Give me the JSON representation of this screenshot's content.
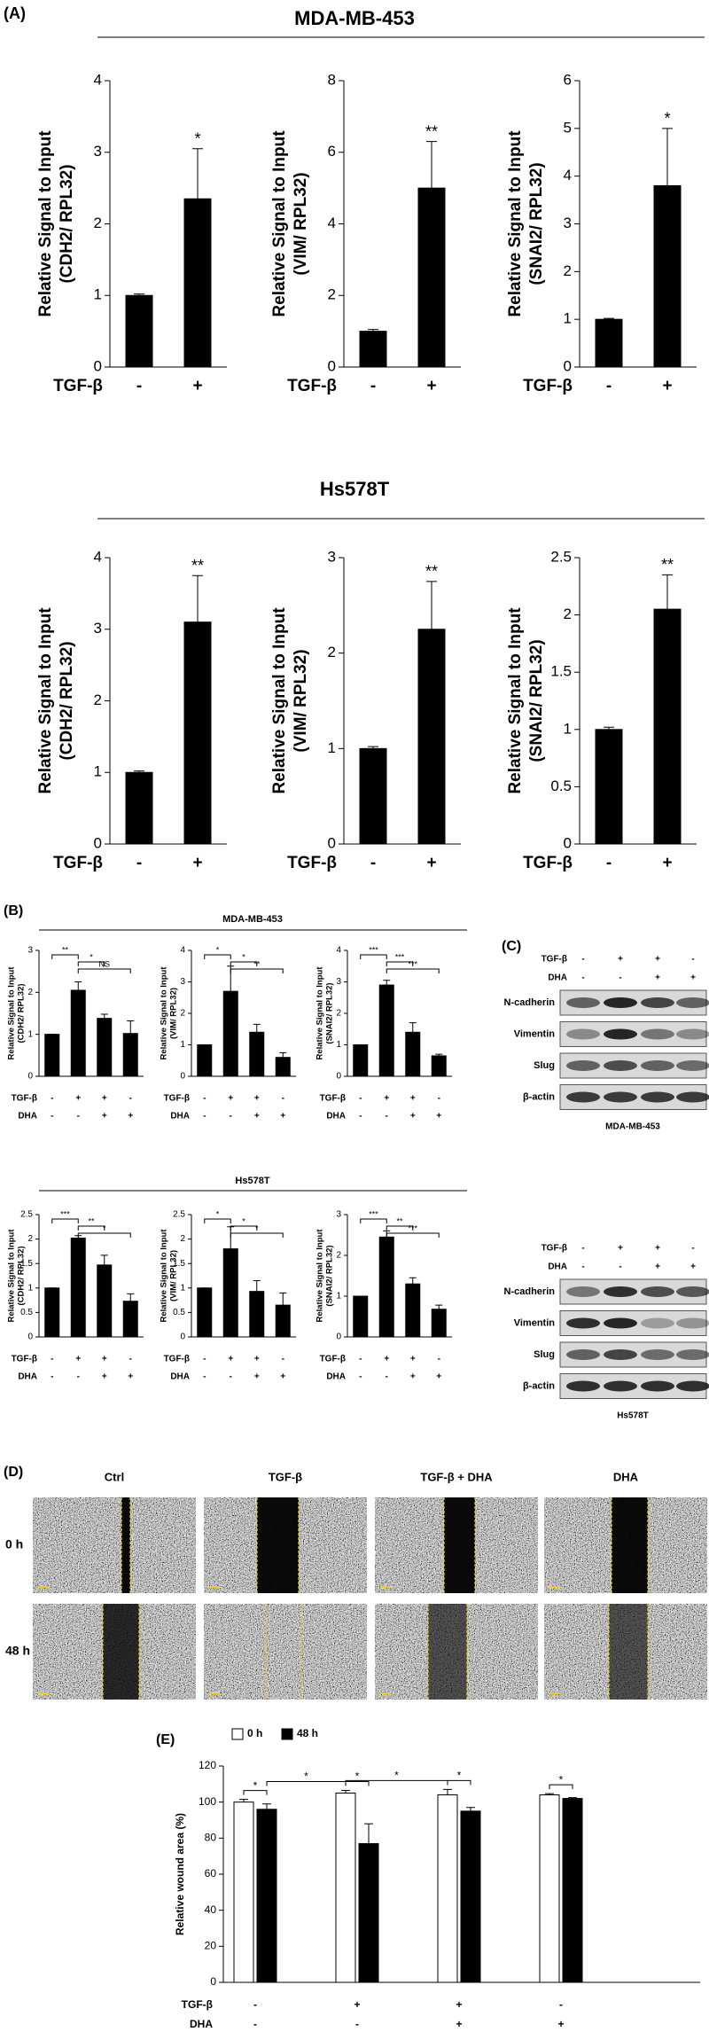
{
  "figure": {
    "panels": [
      "(A)",
      "(B)",
      "(C)",
      "(D)",
      "(E)"
    ],
    "sections": [
      "MDA-MB-453",
      "Hs578T",
      "MDA-MB-453",
      "Hs578T"
    ]
  },
  "chart_data": [
    {
      "type": "bar",
      "ylabel": [
        "Relative Signal to Input",
        "(CDH2/ RPL32)"
      ],
      "treatments": [
        {
          "name": "TGF-β",
          "signs": [
            "-",
            "+"
          ]
        }
      ],
      "values": [
        1,
        2.35
      ],
      "errors": [
        0.02,
        0.7
      ],
      "color": "#000000",
      "ylim": [
        0,
        4
      ],
      "yticks": [
        0,
        1,
        2,
        3,
        4
      ],
      "significance": [
        {
          "text": "*",
          "bar": 1
        }
      ]
    },
    {
      "type": "bar",
      "ylabel": [
        "Relative Signal to Input",
        "(VIM/ RPL32)"
      ],
      "treatments": [
        {
          "name": "TGF-β",
          "signs": [
            "-",
            "+"
          ]
        }
      ],
      "values": [
        1,
        5
      ],
      "errors": [
        0.05,
        1.3
      ],
      "color": "#000000",
      "ylim": [
        0,
        8
      ],
      "yticks": [
        0,
        2,
        4,
        6,
        8
      ],
      "significance": [
        {
          "text": "**",
          "bar": 1
        }
      ]
    },
    {
      "type": "bar",
      "ylabel": [
        "Relative Signal to Input",
        "(SNAI2/ RPL32)"
      ],
      "treatments": [
        {
          "name": "TGF-β",
          "signs": [
            "-",
            "+"
          ]
        }
      ],
      "values": [
        1,
        3.8
      ],
      "errors": [
        0.02,
        1.2
      ],
      "color": "#000000",
      "ylim": [
        0,
        6
      ],
      "yticks": [
        0,
        1,
        2,
        3,
        4,
        5,
        6
      ],
      "significance": [
        {
          "text": "*",
          "bar": 1
        }
      ]
    },
    {
      "type": "bar",
      "ylabel": [
        "Relative Signal to Input",
        "(CDH2/ RPL32)"
      ],
      "treatments": [
        {
          "name": "TGF-β",
          "signs": [
            "-",
            "+"
          ]
        }
      ],
      "values": [
        1,
        3.1
      ],
      "errors": [
        0.02,
        0.65
      ],
      "color": "#000000",
      "ylim": [
        0,
        4
      ],
      "yticks": [
        0,
        1,
        2,
        3,
        4
      ],
      "significance": [
        {
          "text": "**",
          "bar": 1
        }
      ]
    },
    {
      "type": "bar",
      "ylabel": [
        "Relative Signal to Input",
        "(VIM/ RPL32)"
      ],
      "treatments": [
        {
          "name": "TGF-β",
          "signs": [
            "-",
            "+"
          ]
        }
      ],
      "values": [
        1,
        2.25
      ],
      "errors": [
        0.02,
        0.5
      ],
      "color": "#000000",
      "ylim": [
        0,
        3
      ],
      "yticks": [
        0,
        1,
        2,
        3
      ],
      "significance": [
        {
          "text": "**",
          "bar": 1
        }
      ]
    },
    {
      "type": "bar",
      "ylabel": [
        "Relative Signal to Input",
        "(SNAI2/ RPL32)"
      ],
      "treatments": [
        {
          "name": "TGF-β",
          "signs": [
            "-",
            "+"
          ]
        }
      ],
      "values": [
        1,
        2.05
      ],
      "errors": [
        0.02,
        0.3
      ],
      "color": "#000000",
      "ylim": [
        0,
        2.5
      ],
      "yticks": [
        0,
        0.5,
        1,
        1.5,
        2,
        2.5
      ],
      "significance": [
        {
          "text": "**",
          "bar": 1
        }
      ]
    },
    {
      "type": "bar",
      "ylabel": [
        "Relative Signal to Input",
        "(CDH2/ RPL32)"
      ],
      "treatments": [
        {
          "name": "TGF-β",
          "signs": [
            "-",
            "+",
            "+",
            "-"
          ]
        },
        {
          "name": "DHA",
          "signs": [
            "-",
            "-",
            "+",
            "+"
          ]
        }
      ],
      "values": [
        1,
        2.05,
        1.38,
        1.02
      ],
      "errors": [
        0,
        0.2,
        0.1,
        0.3
      ],
      "color": "#000000",
      "ylim": [
        0,
        3
      ],
      "yticks": [
        0,
        1,
        2,
        3
      ],
      "comparisons": [
        {
          "text": "**",
          "from": 0,
          "to": 1
        },
        {
          "text": "*",
          "from": 1,
          "to": 2
        },
        {
          "text": "NS",
          "from": 1,
          "to": 3
        }
      ]
    },
    {
      "type": "bar",
      "ylabel": [
        "Relative Signal to Input",
        "(VIM/ RPL32)"
      ],
      "treatments": [
        {
          "name": "TGF-β",
          "signs": [
            "-",
            "+",
            "+",
            "-"
          ]
        },
        {
          "name": "DHA",
          "signs": [
            "-",
            "-",
            "+",
            "+"
          ]
        }
      ],
      "values": [
        1,
        2.7,
        1.4,
        0.6
      ],
      "errors": [
        0,
        0.8,
        0.25,
        0.15
      ],
      "color": "#000000",
      "ylim": [
        0,
        4
      ],
      "yticks": [
        0,
        1,
        2,
        3,
        4
      ],
      "comparisons": [
        {
          "text": "*",
          "from": 0,
          "to": 1
        },
        {
          "text": "*",
          "from": 1,
          "to": 2
        },
        {
          "text": "**",
          "from": 1,
          "to": 3
        }
      ]
    },
    {
      "type": "bar",
      "ylabel": [
        "Relative Signal to Input",
        "(SNAI2/ RPL32)"
      ],
      "treatments": [
        {
          "name": "TGF-β",
          "signs": [
            "-",
            "+",
            "+",
            "-"
          ]
        },
        {
          "name": "DHA",
          "signs": [
            "-",
            "-",
            "+",
            "+"
          ]
        }
      ],
      "values": [
        1,
        2.9,
        1.4,
        0.65
      ],
      "errors": [
        0,
        0.15,
        0.3,
        0.05
      ],
      "color": "#000000",
      "ylim": [
        0,
        4
      ],
      "yticks": [
        0,
        1,
        2,
        3,
        4
      ],
      "comparisons": [
        {
          "text": "***",
          "from": 0,
          "to": 1
        },
        {
          "text": "***",
          "from": 1,
          "to": 2
        },
        {
          "text": "***",
          "from": 1,
          "to": 3
        }
      ]
    },
    {
      "type": "bar",
      "ylabel": [
        "Relative Signal to Input",
        "(CDH2/ RPL32)"
      ],
      "treatments": [
        {
          "name": "TGF-β",
          "signs": [
            "-",
            "+",
            "+",
            "-"
          ]
        },
        {
          "name": "DHA",
          "signs": [
            "-",
            "-",
            "+",
            "+"
          ]
        }
      ],
      "values": [
        1,
        2.02,
        1.47,
        0.73
      ],
      "errors": [
        0,
        0.05,
        0.2,
        0.15
      ],
      "color": "#000000",
      "ylim": [
        0,
        2.5
      ],
      "yticks": [
        0,
        0.5,
        1,
        1.5,
        2,
        2.5
      ],
      "comparisons": [
        {
          "text": "***",
          "from": 0,
          "to": 1
        },
        {
          "text": "**",
          "from": 1,
          "to": 2
        },
        {
          "text": "*",
          "from": 1,
          "to": 3
        }
      ]
    },
    {
      "type": "bar",
      "ylabel": [
        "Relative Signal to Input",
        "(VIM/ RPL32)"
      ],
      "treatments": [
        {
          "name": "TGF-β",
          "signs": [
            "-",
            "+",
            "+",
            "-"
          ]
        },
        {
          "name": "DHA",
          "signs": [
            "-",
            "-",
            "+",
            "+"
          ]
        }
      ],
      "values": [
        1,
        1.8,
        0.93,
        0.65
      ],
      "errors": [
        0,
        0.45,
        0.22,
        0.25
      ],
      "color": "#000000",
      "ylim": [
        0,
        2.5
      ],
      "yticks": [
        0,
        0.5,
        1,
        1.5,
        2,
        2.5
      ],
      "comparisons": [
        {
          "text": "*",
          "from": 0,
          "to": 1
        },
        {
          "text": "*",
          "from": 1,
          "to": 2
        },
        {
          "text": "*",
          "from": 1,
          "to": 3
        }
      ]
    },
    {
      "type": "bar",
      "ylabel": [
        "Relative Signal to Input",
        "(SNAI2/ RPL32)"
      ],
      "treatments": [
        {
          "name": "TGF-β",
          "signs": [
            "-",
            "+",
            "+",
            "-"
          ]
        },
        {
          "name": "DHA",
          "signs": [
            "-",
            "-",
            "+",
            "+"
          ]
        }
      ],
      "values": [
        1,
        2.45,
        1.3,
        0.68
      ],
      "errors": [
        0,
        0.15,
        0.15,
        0.1
      ],
      "color": "#000000",
      "ylim": [
        0,
        3
      ],
      "yticks": [
        0,
        1,
        2,
        3
      ],
      "comparisons": [
        {
          "text": "***",
          "from": 0,
          "to": 1
        },
        {
          "text": "**",
          "from": 1,
          "to": 2
        },
        {
          "text": "***",
          "from": 1,
          "to": 3
        }
      ]
    },
    {
      "type": "bar",
      "ylabel": [
        "Relative wound area (%)"
      ],
      "treatments": [
        {
          "name": "TGF-β",
          "signs": [
            "-",
            "+",
            "+",
            "-"
          ]
        },
        {
          "name": "DHA",
          "signs": [
            "-",
            "-",
            "+",
            "+"
          ]
        }
      ],
      "series": [
        {
          "name": "0 h",
          "color": "#ffffff",
          "values": [
            100,
            105,
            104,
            104
          ],
          "errors": [
            1.5,
            1.5,
            3,
            0.7
          ]
        },
        {
          "name": "48 h",
          "color": "#000000",
          "values": [
            96,
            77,
            95,
            102
          ],
          "errors": [
            3,
            11,
            2,
            0.5
          ]
        }
      ],
      "ylim": [
        0,
        120
      ],
      "yticks": [
        0,
        20,
        40,
        60,
        80,
        100,
        120
      ],
      "comparisons": [
        {
          "text": "*",
          "from": 0,
          "to": 4
        },
        {
          "text": "*",
          "from": 4,
          "to": 1
        },
        {
          "text": "*",
          "from": 1,
          "to": 5
        },
        {
          "text": "*",
          "from": 1,
          "to": 2
        },
        {
          "text": "*",
          "from": 2,
          "to": 6
        },
        {
          "text": "*",
          "from": 3,
          "to": 7
        }
      ]
    }
  ],
  "blots": [
    {
      "cell_line": "MDA-MB-453",
      "treatments": [
        {
          "name": "TGF-β",
          "signs": [
            "-",
            "+",
            "+",
            "-"
          ]
        },
        {
          "name": "DHA",
          "signs": [
            "-",
            "-",
            "+",
            "+"
          ]
        }
      ],
      "proteins": [
        "N-cadherin",
        "Vimentin",
        "Slug",
        "β-actin"
      ]
    },
    {
      "cell_line": "Hs578T",
      "treatments": [
        {
          "name": "TGF-β",
          "signs": [
            "-",
            "+",
            "+",
            "-"
          ]
        },
        {
          "name": "DHA",
          "signs": [
            "-",
            "-",
            "+",
            "+"
          ]
        }
      ],
      "proteins": [
        "N-cadherin",
        "Vimentin",
        "Slug",
        "β-actin"
      ]
    }
  ],
  "wound": {
    "conditions": [
      "Ctrl",
      "TGF-β",
      "TGF-β + DHA",
      "DHA"
    ],
    "times": [
      "0 h",
      "48 h"
    ]
  }
}
